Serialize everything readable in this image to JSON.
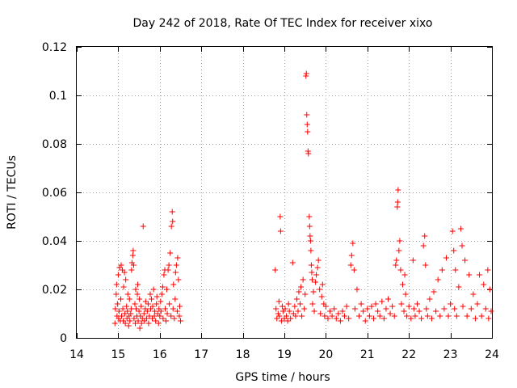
{
  "chart_data": {
    "type": "scatter",
    "title": "Day 242 of 2018, Rate Of TEC Index for receiver xixo",
    "xlabel": "GPS time / hours",
    "ylabel": "ROTI / TECUs",
    "xlim": [
      14,
      24
    ],
    "ylim": [
      0,
      0.12
    ],
    "xticks": [
      14,
      15,
      16,
      17,
      18,
      19,
      20,
      21,
      22,
      23,
      24
    ],
    "yticks": [
      0,
      0.02,
      0.04,
      0.06,
      0.08,
      0.1,
      0.12
    ],
    "xtick_labels": [
      "14",
      "15",
      "16",
      "17",
      "18",
      "19",
      "20",
      "21",
      "22",
      "23",
      "24"
    ],
    "ytick_labels": [
      "0",
      "0.02",
      "0.04",
      "0.06",
      "0.08",
      "0.1",
      "0.12"
    ],
    "grid": true,
    "marker": "+",
    "color": "#ff0000",
    "series": [
      {
        "name": "ROTI",
        "points": [
          [
            14.92,
            0.006
          ],
          [
            14.93,
            0.012
          ],
          [
            14.95,
            0.018
          ],
          [
            14.96,
            0.022
          ],
          [
            14.97,
            0.009
          ],
          [
            14.98,
            0.014
          ],
          [
            15.0,
            0.026
          ],
          [
            15.01,
            0.008
          ],
          [
            15.02,
            0.011
          ],
          [
            15.03,
            0.029
          ],
          [
            15.05,
            0.007
          ],
          [
            15.06,
            0.016
          ],
          [
            15.07,
            0.03
          ],
          [
            15.08,
            0.009
          ],
          [
            15.1,
            0.028
          ],
          [
            15.11,
            0.012
          ],
          [
            15.12,
            0.007
          ],
          [
            15.13,
            0.021
          ],
          [
            15.15,
            0.027
          ],
          [
            15.16,
            0.01
          ],
          [
            15.17,
            0.006
          ],
          [
            15.18,
            0.024
          ],
          [
            15.2,
            0.013
          ],
          [
            15.21,
            0.008
          ],
          [
            15.22,
            0.011
          ],
          [
            15.23,
            0.018
          ],
          [
            15.25,
            0.005
          ],
          [
            15.26,
            0.009
          ],
          [
            15.27,
            0.016
          ],
          [
            15.28,
            0.007
          ],
          [
            15.3,
            0.01
          ],
          [
            15.31,
            0.012
          ],
          [
            15.32,
            0.028
          ],
          [
            15.33,
            0.031
          ],
          [
            15.35,
            0.034
          ],
          [
            15.36,
            0.036
          ],
          [
            15.37,
            0.03
          ],
          [
            15.38,
            0.008
          ],
          [
            15.4,
            0.014
          ],
          [
            15.41,
            0.006
          ],
          [
            15.42,
            0.02
          ],
          [
            15.43,
            0.012
          ],
          [
            15.45,
            0.009
          ],
          [
            15.46,
            0.018
          ],
          [
            15.47,
            0.022
          ],
          [
            15.48,
            0.007
          ],
          [
            15.5,
            0.011
          ],
          [
            15.51,
            0.016
          ],
          [
            15.52,
            0.004
          ],
          [
            15.53,
            0.009
          ],
          [
            15.55,
            0.013
          ],
          [
            15.56,
            0.006
          ],
          [
            15.58,
            0.008
          ],
          [
            15.6,
            0.046
          ],
          [
            15.62,
            0.01
          ],
          [
            15.63,
            0.007
          ],
          [
            15.65,
            0.012
          ],
          [
            15.66,
            0.015
          ],
          [
            15.68,
            0.008
          ],
          [
            15.7,
            0.011
          ],
          [
            15.72,
            0.014
          ],
          [
            15.73,
            0.006
          ],
          [
            15.75,
            0.009
          ],
          [
            15.77,
            0.018
          ],
          [
            15.78,
            0.012
          ],
          [
            15.8,
            0.016
          ],
          [
            15.82,
            0.008
          ],
          [
            15.83,
            0.013
          ],
          [
            15.85,
            0.02
          ],
          [
            15.87,
            0.009
          ],
          [
            15.88,
            0.011
          ],
          [
            15.9,
            0.007
          ],
          [
            15.92,
            0.014
          ],
          [
            15.93,
            0.017
          ],
          [
            15.95,
            0.01
          ],
          [
            15.97,
            0.006
          ],
          [
            15.98,
            0.012
          ],
          [
            16.0,
            0.009
          ],
          [
            16.02,
            0.015
          ],
          [
            16.03,
            0.011
          ],
          [
            16.05,
            0.018
          ],
          [
            16.07,
            0.021
          ],
          [
            16.08,
            0.008
          ],
          [
            16.1,
            0.026
          ],
          [
            16.12,
            0.028
          ],
          [
            16.13,
            0.012
          ],
          [
            16.15,
            0.007
          ],
          [
            16.17,
            0.02
          ],
          [
            16.18,
            0.01
          ],
          [
            16.2,
            0.028
          ],
          [
            16.22,
            0.03
          ],
          [
            16.23,
            0.014
          ],
          [
            16.25,
            0.035
          ],
          [
            16.27,
            0.009
          ],
          [
            16.28,
            0.046
          ],
          [
            16.3,
            0.052
          ],
          [
            16.31,
            0.048
          ],
          [
            16.32,
            0.012
          ],
          [
            16.33,
            0.022
          ],
          [
            16.35,
            0.008
          ],
          [
            16.37,
            0.016
          ],
          [
            16.38,
            0.027
          ],
          [
            16.4,
            0.03
          ],
          [
            16.42,
            0.011
          ],
          [
            16.43,
            0.033
          ],
          [
            16.45,
            0.024
          ],
          [
            16.47,
            0.009
          ],
          [
            16.48,
            0.013
          ],
          [
            16.5,
            0.007
          ],
          [
            18.78,
            0.028
          ],
          [
            18.8,
            0.012
          ],
          [
            18.82,
            0.008
          ],
          [
            18.85,
            0.01
          ],
          [
            18.87,
            0.015
          ],
          [
            18.88,
            0.009
          ],
          [
            18.9,
            0.05
          ],
          [
            18.91,
            0.044
          ],
          [
            18.93,
            0.007
          ],
          [
            18.95,
            0.013
          ],
          [
            18.97,
            0.011
          ],
          [
            19.0,
            0.008
          ],
          [
            19.02,
            0.012
          ],
          [
            19.05,
            0.009
          ],
          [
            19.08,
            0.007
          ],
          [
            19.1,
            0.014
          ],
          [
            19.12,
            0.011
          ],
          [
            19.15,
            0.008
          ],
          [
            19.2,
            0.031
          ],
          [
            19.22,
            0.01
          ],
          [
            19.25,
            0.013
          ],
          [
            19.27,
            0.009
          ],
          [
            19.3,
            0.016
          ],
          [
            19.33,
            0.011
          ],
          [
            19.35,
            0.019
          ],
          [
            19.38,
            0.014
          ],
          [
            19.4,
            0.021
          ],
          [
            19.42,
            0.009
          ],
          [
            19.45,
            0.024
          ],
          [
            19.48,
            0.012
          ],
          [
            19.5,
            0.018
          ],
          [
            19.52,
            0.108
          ],
          [
            19.53,
            0.109
          ],
          [
            19.54,
            0.092
          ],
          [
            19.55,
            0.088
          ],
          [
            19.56,
            0.085
          ],
          [
            19.57,
            0.077
          ],
          [
            19.58,
            0.076
          ],
          [
            19.6,
            0.05
          ],
          [
            19.61,
            0.046
          ],
          [
            19.62,
            0.042
          ],
          [
            19.63,
            0.04
          ],
          [
            19.64,
            0.036
          ],
          [
            19.65,
            0.03
          ],
          [
            19.66,
            0.027
          ],
          [
            19.67,
            0.024
          ],
          [
            19.68,
            0.014
          ],
          [
            19.7,
            0.019
          ],
          [
            19.72,
            0.011
          ],
          [
            19.75,
            0.023
          ],
          [
            19.77,
            0.026
          ],
          [
            19.8,
            0.029
          ],
          [
            19.82,
            0.032
          ],
          [
            19.85,
            0.02
          ],
          [
            19.87,
            0.01
          ],
          [
            19.9,
            0.017
          ],
          [
            19.92,
            0.022
          ],
          [
            19.95,
            0.014
          ],
          [
            19.97,
            0.009
          ],
          [
            20.0,
            0.013
          ],
          [
            20.05,
            0.008
          ],
          [
            20.1,
            0.011
          ],
          [
            20.15,
            0.009
          ],
          [
            20.2,
            0.012
          ],
          [
            20.25,
            0.008
          ],
          [
            20.3,
            0.01
          ],
          [
            20.35,
            0.007
          ],
          [
            20.4,
            0.011
          ],
          [
            20.45,
            0.009
          ],
          [
            20.5,
            0.013
          ],
          [
            20.55,
            0.008
          ],
          [
            20.6,
            0.03
          ],
          [
            20.62,
            0.034
          ],
          [
            20.65,
            0.039
          ],
          [
            20.68,
            0.028
          ],
          [
            20.7,
            0.012
          ],
          [
            20.75,
            0.02
          ],
          [
            20.8,
            0.009
          ],
          [
            20.85,
            0.014
          ],
          [
            20.9,
            0.011
          ],
          [
            20.95,
            0.007
          ],
          [
            21.0,
            0.012
          ],
          [
            21.05,
            0.009
          ],
          [
            21.1,
            0.013
          ],
          [
            21.15,
            0.008
          ],
          [
            21.2,
            0.014
          ],
          [
            21.25,
            0.011
          ],
          [
            21.3,
            0.009
          ],
          [
            21.35,
            0.015
          ],
          [
            21.4,
            0.008
          ],
          [
            21.45,
            0.012
          ],
          [
            21.5,
            0.016
          ],
          [
            21.55,
            0.01
          ],
          [
            21.6,
            0.013
          ],
          [
            21.65,
            0.009
          ],
          [
            21.68,
            0.03
          ],
          [
            21.7,
            0.032
          ],
          [
            21.72,
            0.054
          ],
          [
            21.73,
            0.056
          ],
          [
            21.74,
            0.061
          ],
          [
            21.76,
            0.036
          ],
          [
            21.78,
            0.04
          ],
          [
            21.8,
            0.028
          ],
          [
            21.82,
            0.014
          ],
          [
            21.85,
            0.022
          ],
          [
            21.88,
            0.011
          ],
          [
            21.9,
            0.026
          ],
          [
            21.92,
            0.018
          ],
          [
            21.95,
            0.009
          ],
          [
            22.0,
            0.013
          ],
          [
            22.05,
            0.008
          ],
          [
            22.1,
            0.032
          ],
          [
            22.12,
            0.012
          ],
          [
            22.15,
            0.009
          ],
          [
            22.2,
            0.014
          ],
          [
            22.25,
            0.011
          ],
          [
            22.3,
            0.008
          ],
          [
            22.35,
            0.038
          ],
          [
            22.38,
            0.042
          ],
          [
            22.4,
            0.03
          ],
          [
            22.42,
            0.012
          ],
          [
            22.45,
            0.009
          ],
          [
            22.5,
            0.016
          ],
          [
            22.55,
            0.008
          ],
          [
            22.6,
            0.019
          ],
          [
            22.65,
            0.011
          ],
          [
            22.7,
            0.024
          ],
          [
            22.75,
            0.009
          ],
          [
            22.8,
            0.028
          ],
          [
            22.85,
            0.012
          ],
          [
            22.9,
            0.033
          ],
          [
            22.95,
            0.009
          ],
          [
            23.0,
            0.014
          ],
          [
            23.05,
            0.044
          ],
          [
            23.08,
            0.036
          ],
          [
            23.1,
            0.012
          ],
          [
            23.12,
            0.028
          ],
          [
            23.15,
            0.009
          ],
          [
            23.2,
            0.021
          ],
          [
            23.25,
            0.045
          ],
          [
            23.28,
            0.038
          ],
          [
            23.3,
            0.013
          ],
          [
            23.35,
            0.032
          ],
          [
            23.4,
            0.009
          ],
          [
            23.45,
            0.026
          ],
          [
            23.5,
            0.012
          ],
          [
            23.55,
            0.018
          ],
          [
            23.6,
            0.008
          ],
          [
            23.65,
            0.014
          ],
          [
            23.7,
            0.026
          ],
          [
            23.75,
            0.009
          ],
          [
            23.8,
            0.022
          ],
          [
            23.85,
            0.012
          ],
          [
            23.9,
            0.028
          ],
          [
            23.92,
            0.008
          ],
          [
            23.95,
            0.02
          ],
          [
            23.98,
            0.011
          ]
        ]
      }
    ]
  }
}
